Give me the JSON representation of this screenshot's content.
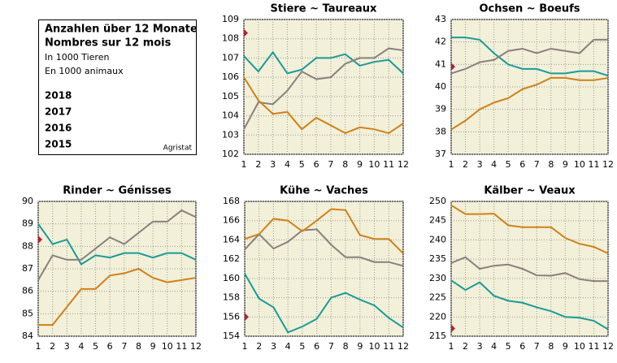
{
  "legend_box": {
    "lines": [
      "Anzahlen über 12 Monate",
      "Nombres sur 12 mois",
      "In 1000 Tieren",
      "En 1000 animaux"
    ],
    "source": "Agristat"
  },
  "chart_data": [
    {
      "type": "line",
      "title": "Stiere  ~  Taureaux",
      "x": [
        1,
        2,
        3,
        4,
        5,
        6,
        7,
        8,
        9,
        10,
        11,
        12
      ],
      "xlim": [
        1,
        12
      ],
      "ylim": [
        102,
        109
      ],
      "yticks": [
        102,
        103,
        104,
        105,
        106,
        107,
        108,
        109
      ],
      "grid": true,
      "series": [
        {
          "name": "2018",
          "color": "#b0213a",
          "values": [
            108.3,
            null,
            null,
            null,
            null,
            null,
            null,
            null,
            null,
            null,
            null,
            null
          ]
        },
        {
          "name": "2017",
          "color": "#1a9a9a",
          "values": [
            107.1,
            106.3,
            107.3,
            106.2,
            106.4,
            107.0,
            107.0,
            107.2,
            106.6,
            106.8,
            106.9,
            106.2
          ]
        },
        {
          "name": "2016",
          "color": "#8a7f7f",
          "values": [
            103.3,
            104.7,
            104.6,
            105.3,
            106.3,
            105.9,
            106.0,
            106.7,
            107.0,
            107.0,
            107.5,
            107.4
          ]
        },
        {
          "name": "2015",
          "color": "#d0801a",
          "values": [
            106.0,
            104.8,
            104.1,
            104.2,
            103.3,
            103.9,
            103.5,
            103.1,
            103.4,
            103.3,
            103.1,
            103.6
          ]
        }
      ]
    },
    {
      "type": "line",
      "title": "Ochsen  ~  Boeufs",
      "x": [
        1,
        2,
        3,
        4,
        5,
        6,
        7,
        8,
        9,
        10,
        11,
        12
      ],
      "xlim": [
        1,
        12
      ],
      "ylim": [
        37,
        43
      ],
      "yticks": [
        37,
        38,
        39,
        40,
        41,
        42,
        43
      ],
      "grid": true,
      "series": [
        {
          "name": "2018",
          "color": "#b0213a",
          "values": [
            40.9,
            null,
            null,
            null,
            null,
            null,
            null,
            null,
            null,
            null,
            null,
            null
          ]
        },
        {
          "name": "2017",
          "color": "#1a9a9a",
          "values": [
            42.2,
            42.2,
            42.1,
            41.5,
            41.0,
            40.8,
            40.8,
            40.6,
            40.6,
            40.7,
            40.7,
            40.5
          ]
        },
        {
          "name": "2016",
          "color": "#8a7f7f",
          "values": [
            40.6,
            40.8,
            41.1,
            41.2,
            41.6,
            41.7,
            41.5,
            41.7,
            41.6,
            41.5,
            42.1,
            42.1
          ]
        },
        {
          "name": "2015",
          "color": "#d0801a",
          "values": [
            38.1,
            38.5,
            39.0,
            39.3,
            39.5,
            39.9,
            40.1,
            40.4,
            40.4,
            40.3,
            40.3,
            40.4
          ]
        }
      ]
    },
    {
      "type": "line",
      "title": "Rinder  ~  Génisses",
      "x": [
        1,
        2,
        3,
        4,
        5,
        6,
        7,
        8,
        9,
        10,
        11,
        12
      ],
      "xlim": [
        1,
        12
      ],
      "ylim": [
        84,
        90
      ],
      "yticks": [
        84,
        85,
        86,
        87,
        88,
        89,
        90
      ],
      "grid": true,
      "series": [
        {
          "name": "2018",
          "color": "#b0213a",
          "values": [
            88.3,
            null,
            null,
            null,
            null,
            null,
            null,
            null,
            null,
            null,
            null,
            null
          ]
        },
        {
          "name": "2017",
          "color": "#1a9a9a",
          "values": [
            89.0,
            88.1,
            88.3,
            87.2,
            87.6,
            87.5,
            87.7,
            87.7,
            87.5,
            87.7,
            87.7,
            87.4
          ]
        },
        {
          "name": "2016",
          "color": "#8a7f7f",
          "values": [
            86.5,
            87.6,
            87.4,
            87.4,
            87.9,
            88.4,
            88.1,
            88.6,
            89.1,
            89.1,
            89.6,
            89.3
          ]
        },
        {
          "name": "2015",
          "color": "#d0801a",
          "values": [
            84.5,
            84.5,
            85.3,
            86.1,
            86.1,
            86.7,
            86.8,
            87.0,
            86.6,
            86.4,
            86.5,
            86.6
          ]
        }
      ]
    },
    {
      "type": "line",
      "title": "Kühe  ~  Vaches",
      "x": [
        1,
        2,
        3,
        4,
        5,
        6,
        7,
        8,
        9,
        10,
        11,
        12
      ],
      "xlim": [
        1,
        12
      ],
      "ylim": [
        154,
        168
      ],
      "yticks": [
        154,
        156,
        158,
        160,
        162,
        164,
        166,
        168
      ],
      "grid": true,
      "series": [
        {
          "name": "2018",
          "color": "#b0213a",
          "values": [
            156.0,
            null,
            null,
            null,
            null,
            null,
            null,
            null,
            null,
            null,
            null,
            null
          ]
        },
        {
          "name": "2017",
          "color": "#1a9a9a",
          "values": [
            160.5,
            157.9,
            157.0,
            154.4,
            155.0,
            155.8,
            158.0,
            158.5,
            157.8,
            157.2,
            155.9,
            154.9
          ]
        },
        {
          "name": "2016",
          "color": "#8a7f7f",
          "values": [
            163.0,
            164.6,
            163.1,
            163.8,
            165.0,
            165.1,
            163.5,
            162.2,
            162.2,
            161.7,
            161.7,
            161.3
          ]
        },
        {
          "name": "2015",
          "color": "#d0801a",
          "values": [
            164.1,
            164.6,
            166.2,
            166.0,
            164.9,
            166.0,
            167.2,
            167.1,
            164.5,
            164.1,
            164.1,
            162.6
          ]
        }
      ]
    },
    {
      "type": "line",
      "title": "Kälber  ~  Veaux",
      "x": [
        1,
        2,
        3,
        4,
        5,
        6,
        7,
        8,
        9,
        10,
        11,
        12
      ],
      "xlim": [
        1,
        12
      ],
      "ylim": [
        215,
        250
      ],
      "yticks": [
        215,
        220,
        225,
        230,
        235,
        240,
        245,
        250
      ],
      "grid": true,
      "series": [
        {
          "name": "2018",
          "color": "#b0213a",
          "values": [
            217.0,
            null,
            null,
            null,
            null,
            null,
            null,
            null,
            null,
            null,
            null,
            null
          ]
        },
        {
          "name": "2017",
          "color": "#1a9a9a",
          "values": [
            229.5,
            227.0,
            229.0,
            225.5,
            224.2,
            223.7,
            222.5,
            221.5,
            220.0,
            219.8,
            219.0,
            216.8
          ]
        },
        {
          "name": "2016",
          "color": "#8a7f7f",
          "values": [
            234.0,
            235.5,
            232.5,
            233.3,
            233.6,
            232.5,
            230.8,
            230.7,
            231.4,
            229.8,
            229.3,
            229.3
          ]
        },
        {
          "name": "2015",
          "color": "#d0801a",
          "values": [
            249.0,
            246.7,
            246.7,
            246.8,
            243.8,
            243.3,
            243.3,
            243.3,
            240.5,
            239.0,
            238.2,
            236.5
          ]
        }
      ]
    }
  ]
}
